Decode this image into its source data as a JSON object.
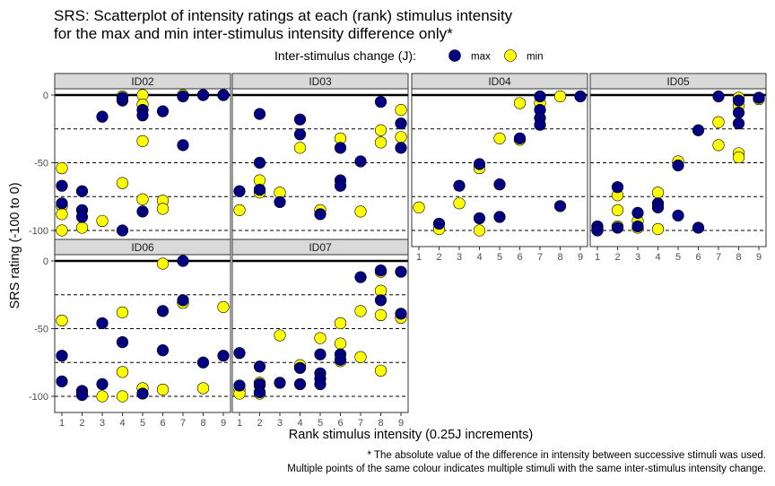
{
  "chart_data": {
    "type": "scatter",
    "title": "SRS: Scatterplot of intensity ratings at each (rank) stimulus intensity\nfor the max and min inter-stimulus intensity difference only*",
    "xlabel": "Rank stimulus intensity (0.25J increments)",
    "ylabel": "SRS rating (-100 to 0)",
    "legend": {
      "title": "Inter-stimulus change (J):",
      "position": "top",
      "items": [
        {
          "name": "max",
          "color": "#000080"
        },
        {
          "name": "min",
          "color": "#ffff00"
        }
      ]
    },
    "caption": "* The absolute value of the difference in intensity between successive stimuli was used.\nMultiple points of the same colour indicates multiple stimuli with the same inter-stimulus intensity change.",
    "x_ticks": [
      1,
      2,
      3,
      4,
      5,
      6,
      7,
      8,
      9
    ],
    "y_ticks": [
      0,
      -50,
      -100
    ],
    "ylim": [
      -100,
      0
    ],
    "xlim": [
      1,
      9
    ],
    "reference_lines": {
      "solid": [
        0
      ],
      "dashed": [
        -25,
        -50,
        -75,
        -100
      ]
    },
    "grid": false,
    "panels": [
      {
        "id": "ID02",
        "max": [
          [
            1,
            -67
          ],
          [
            1,
            -80
          ],
          [
            2,
            -71
          ],
          [
            2,
            -85
          ],
          [
            2,
            -90
          ],
          [
            3,
            -16
          ],
          [
            4,
            -4
          ],
          [
            4,
            -2
          ],
          [
            4,
            -100
          ],
          [
            5,
            -11
          ],
          [
            5,
            -15
          ],
          [
            5,
            -86
          ],
          [
            6,
            -12
          ],
          [
            7,
            -37
          ],
          [
            7,
            -1
          ],
          [
            8,
            0
          ],
          [
            9,
            0
          ]
        ],
        "min": [
          [
            1,
            -54
          ],
          [
            1,
            -82
          ],
          [
            1,
            -88
          ],
          [
            1,
            -100
          ],
          [
            2,
            -98
          ],
          [
            3,
            -93
          ],
          [
            4,
            -1
          ],
          [
            4,
            -65
          ],
          [
            5,
            0
          ],
          [
            5,
            -7
          ],
          [
            5,
            -34
          ],
          [
            5,
            -77
          ],
          [
            6,
            -78
          ],
          [
            6,
            -84
          ],
          [
            7,
            0
          ],
          [
            8,
            0
          ],
          [
            9,
            0
          ]
        ]
      },
      {
        "id": "ID03",
        "max": [
          [
            1,
            -71
          ],
          [
            2,
            -14
          ],
          [
            2,
            -50
          ],
          [
            2,
            -70
          ],
          [
            3,
            -79
          ],
          [
            4,
            -18
          ],
          [
            4,
            -29
          ],
          [
            5,
            -88
          ],
          [
            6,
            -39
          ],
          [
            6,
            -63
          ],
          [
            6,
            -67
          ],
          [
            7,
            -49
          ],
          [
            8,
            -5
          ],
          [
            9,
            -21
          ],
          [
            9,
            -39
          ]
        ],
        "min": [
          [
            1,
            -85
          ],
          [
            2,
            -63
          ],
          [
            2,
            -70
          ],
          [
            2,
            -72
          ],
          [
            3,
            -72
          ],
          [
            4,
            -39
          ],
          [
            5,
            -85
          ],
          [
            6,
            -32
          ],
          [
            7,
            -86
          ],
          [
            8,
            -26
          ],
          [
            8,
            -35
          ],
          [
            9,
            -11
          ],
          [
            9,
            -31
          ]
        ]
      },
      {
        "id": "ID04",
        "max": [
          [
            2,
            -95
          ],
          [
            3,
            -67
          ],
          [
            4,
            -51
          ],
          [
            4,
            -91
          ],
          [
            5,
            -66
          ],
          [
            5,
            -90
          ],
          [
            6,
            -32
          ],
          [
            7,
            -1
          ],
          [
            7,
            -11
          ],
          [
            7,
            -17
          ],
          [
            7,
            -22
          ],
          [
            8,
            -82
          ],
          [
            9,
            -1
          ]
        ],
        "min": [
          [
            1,
            -83
          ],
          [
            2,
            -99
          ],
          [
            3,
            -80
          ],
          [
            4,
            -54
          ],
          [
            4,
            -100
          ],
          [
            5,
            -32
          ],
          [
            6,
            -6
          ],
          [
            6,
            -33
          ],
          [
            7,
            -6
          ],
          [
            8,
            -1
          ]
        ]
      },
      {
        "id": "ID05",
        "max": [
          [
            1,
            -97
          ],
          [
            1,
            -100
          ],
          [
            2,
            -68
          ],
          [
            2,
            -98
          ],
          [
            3,
            -87
          ],
          [
            3,
            -97
          ],
          [
            4,
            -80
          ],
          [
            4,
            -83
          ],
          [
            5,
            -89
          ],
          [
            5,
            -52
          ],
          [
            6,
            -26
          ],
          [
            6,
            -98
          ],
          [
            7,
            -1
          ],
          [
            8,
            -4
          ],
          [
            8,
            -13
          ],
          [
            8,
            -21
          ],
          [
            9,
            -2
          ]
        ],
        "min": [
          [
            1,
            -99
          ],
          [
            2,
            -74
          ],
          [
            2,
            -85
          ],
          [
            2,
            -97
          ],
          [
            3,
            -93
          ],
          [
            3,
            -98
          ],
          [
            4,
            -72
          ],
          [
            4,
            -99
          ],
          [
            5,
            -49
          ],
          [
            7,
            -20
          ],
          [
            7,
            -37
          ],
          [
            8,
            -2
          ],
          [
            8,
            -8
          ],
          [
            8,
            -43
          ],
          [
            8,
            -46
          ],
          [
            9,
            -3
          ]
        ]
      },
      {
        "id": "ID06",
        "max": [
          [
            1,
            -70
          ],
          [
            1,
            -89
          ],
          [
            2,
            -96
          ],
          [
            2,
            -99
          ],
          [
            3,
            -46
          ],
          [
            3,
            -91
          ],
          [
            4,
            -60
          ],
          [
            5,
            -98
          ],
          [
            6,
            -37
          ],
          [
            6,
            -66
          ],
          [
            7,
            0
          ],
          [
            7,
            -29
          ],
          [
            8,
            -75
          ],
          [
            9,
            -70
          ]
        ],
        "min": [
          [
            1,
            -44
          ],
          [
            2,
            -97
          ],
          [
            3,
            -100
          ],
          [
            4,
            -38
          ],
          [
            4,
            -82
          ],
          [
            4,
            -100
          ],
          [
            5,
            -94
          ],
          [
            6,
            -2
          ],
          [
            6,
            -95
          ],
          [
            7,
            -31
          ],
          [
            8,
            -94
          ],
          [
            9,
            -34
          ]
        ]
      },
      {
        "id": "ID07",
        "max": [
          [
            1,
            -68
          ],
          [
            1,
            -92
          ],
          [
            2,
            -78
          ],
          [
            2,
            -91
          ],
          [
            2,
            -97
          ],
          [
            3,
            -90
          ],
          [
            4,
            -79
          ],
          [
            4,
            -91
          ],
          [
            5,
            -69
          ],
          [
            5,
            -83
          ],
          [
            5,
            -87
          ],
          [
            5,
            -91
          ],
          [
            6,
            -69
          ],
          [
            6,
            -73
          ],
          [
            7,
            -12
          ],
          [
            8,
            -7
          ],
          [
            8,
            -29
          ],
          [
            9,
            -8
          ],
          [
            9,
            -39
          ]
        ],
        "min": [
          [
            1,
            -95
          ],
          [
            1,
            -98
          ],
          [
            2,
            -90
          ],
          [
            2,
            -92
          ],
          [
            2,
            -98
          ],
          [
            3,
            -55
          ],
          [
            4,
            -77
          ],
          [
            5,
            -57
          ],
          [
            6,
            -46
          ],
          [
            6,
            -61
          ],
          [
            6,
            -74
          ],
          [
            7,
            -37
          ],
          [
            7,
            -71
          ],
          [
            8,
            -8
          ],
          [
            8,
            -22
          ],
          [
            8,
            -40
          ],
          [
            8,
            -81
          ],
          [
            9,
            -42
          ]
        ]
      }
    ]
  }
}
